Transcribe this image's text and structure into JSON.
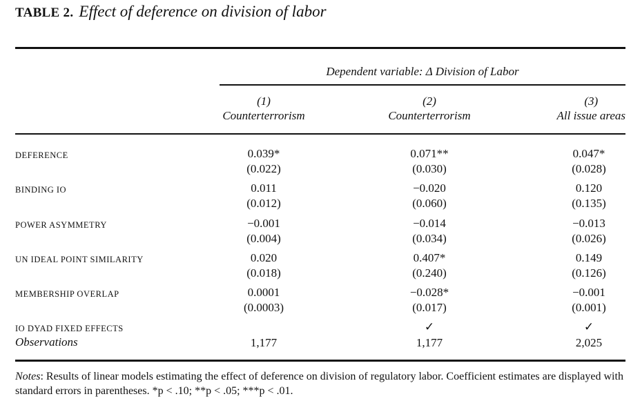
{
  "table": {
    "label": "TABLE 2.",
    "caption": "Effect of deference on division of labor",
    "dependent_variable": "Dependent variable: Δ Division of Labor",
    "columns": [
      {
        "number": "(1)",
        "name": "Counterterrorism"
      },
      {
        "number": "(2)",
        "name": "Counterterrorism"
      },
      {
        "number": "(3)",
        "name": "All issue areas"
      }
    ],
    "rows": [
      {
        "label": "DEFERENCE",
        "cells": [
          {
            "est": "0.039*",
            "se": "(0.022)"
          },
          {
            "est": "0.071**",
            "se": "(0.030)"
          },
          {
            "est": "0.047*",
            "se": "(0.028)"
          }
        ]
      },
      {
        "label": "BINDING IO",
        "cells": [
          {
            "est": "0.011",
            "se": "(0.012)"
          },
          {
            "est": "−0.020",
            "se": "(0.060)"
          },
          {
            "est": "0.120",
            "se": "(0.135)"
          }
        ]
      },
      {
        "label": "POWER ASYMMETRY",
        "cells": [
          {
            "est": "−0.001",
            "se": "(0.004)"
          },
          {
            "est": "−0.014",
            "se": "(0.034)"
          },
          {
            "est": "−0.013",
            "se": "(0.026)"
          }
        ]
      },
      {
        "label": "UN IDEAL POINT SIMILARITY",
        "cells": [
          {
            "est": "0.020",
            "se": "(0.018)"
          },
          {
            "est": "0.407*",
            "se": "(0.240)"
          },
          {
            "est": "0.149",
            "se": "(0.126)"
          }
        ]
      },
      {
        "label": "MEMBERSHIP OVERLAP",
        "cells": [
          {
            "est": "0.0001",
            "se": "(0.0003)"
          },
          {
            "est": "−0.028*",
            "se": "(0.017)"
          },
          {
            "est": "−0.001",
            "se": "(0.001)"
          }
        ]
      }
    ],
    "fixed_effects": {
      "label": "IO DYAD FIXED EFFECTS",
      "cells": [
        "",
        "✓",
        "✓"
      ]
    },
    "observations": {
      "label": "Observations",
      "cells": [
        "1,177",
        "1,177",
        "2,025"
      ]
    },
    "notes": {
      "lead": "Notes",
      "text": ": Results of linear models estimating the effect of deference on division of regulatory labor. Coefficient estimates are displayed with standard errors in parentheses. *p < .10; **p < .05; ***p < .01."
    }
  }
}
